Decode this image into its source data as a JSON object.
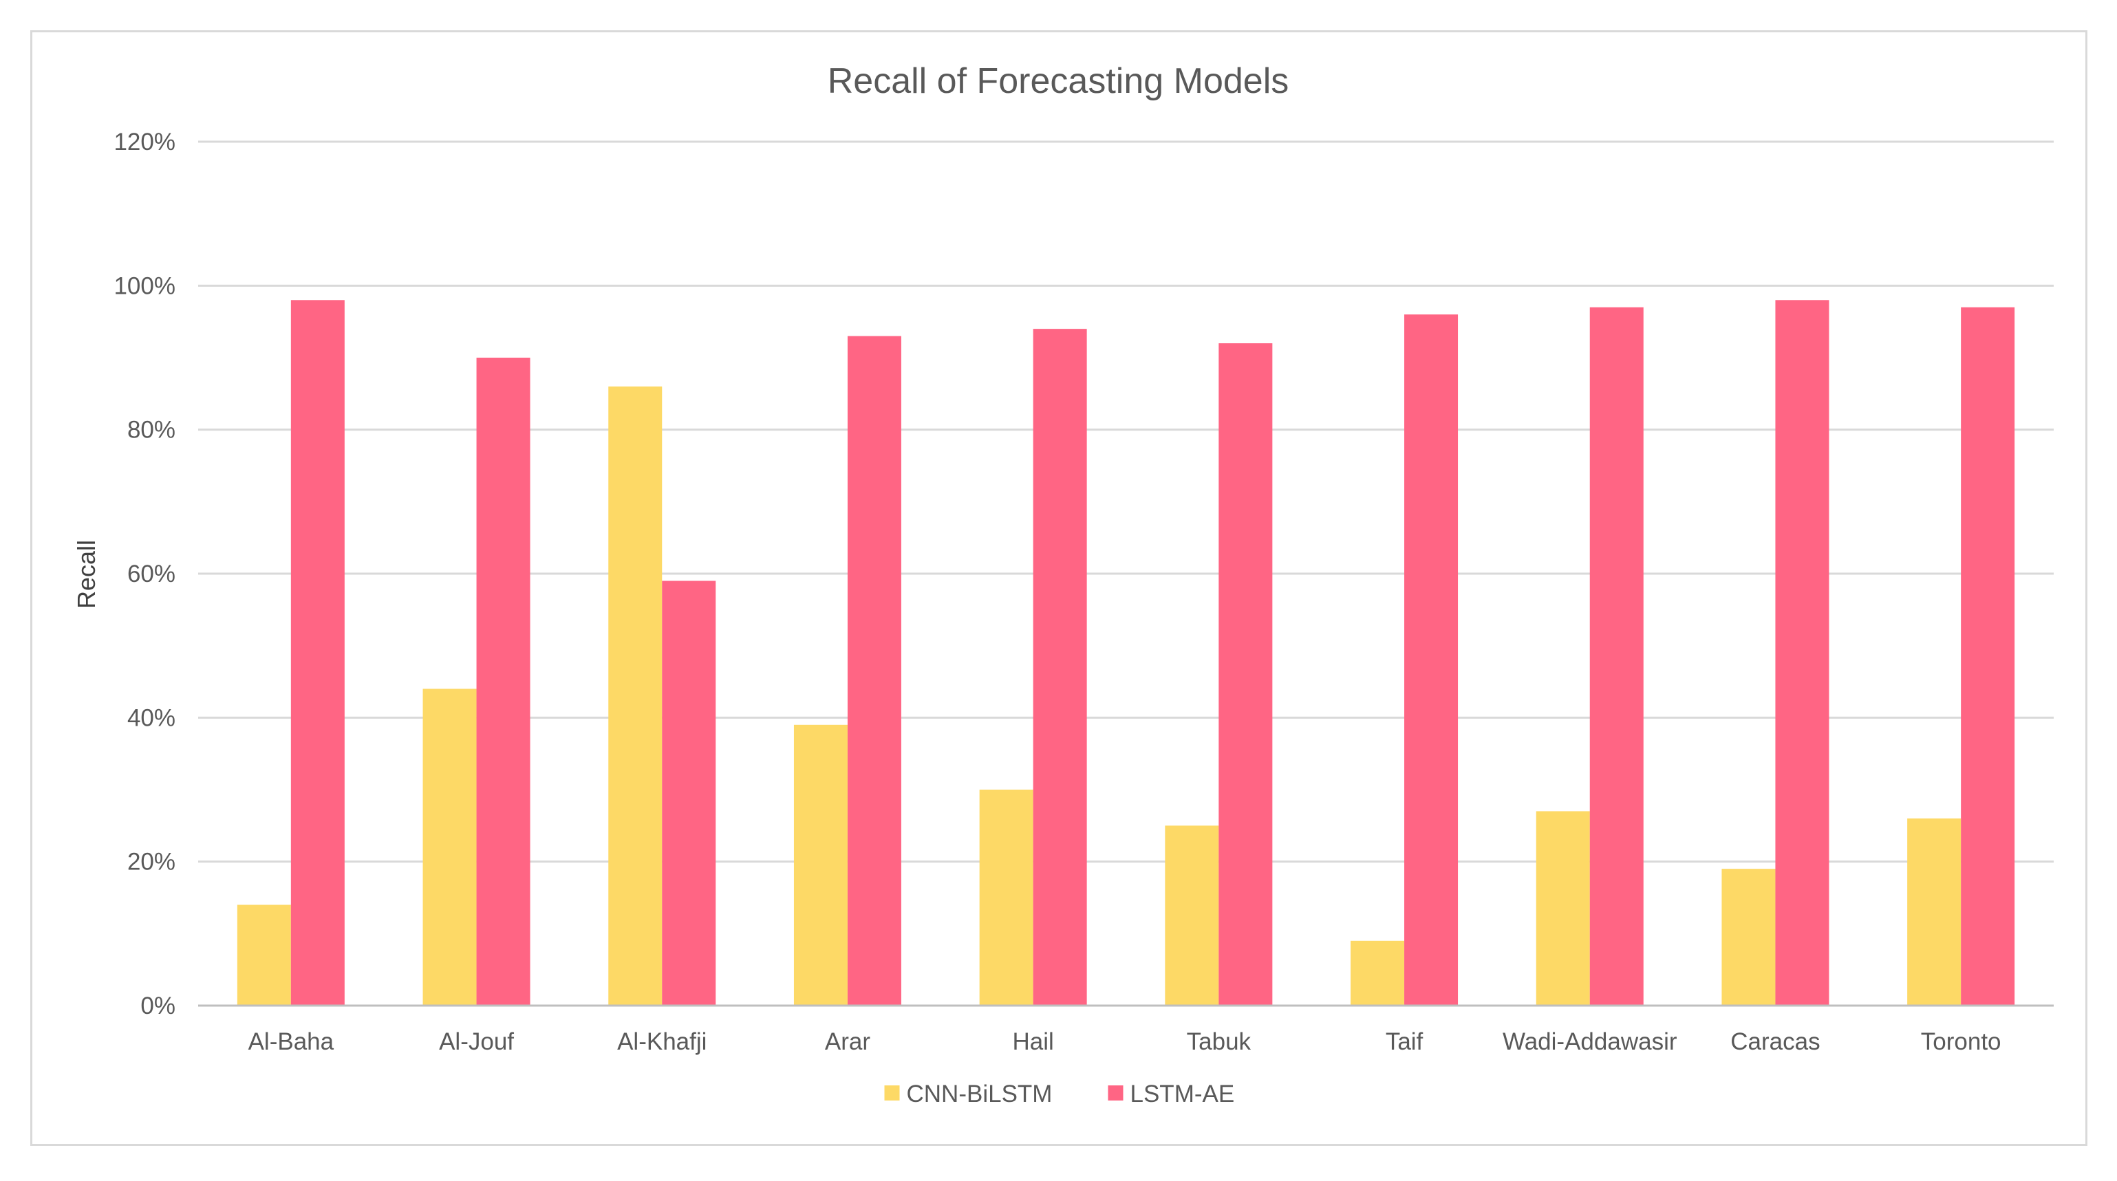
{
  "chart_data": {
    "type": "bar",
    "title": "Recall of Forecasting Models",
    "xlabel": "",
    "ylabel": "Recall",
    "ylim": [
      0,
      120
    ],
    "yticks": [
      "0%",
      "20%",
      "40%",
      "60%",
      "80%",
      "100%",
      "120%"
    ],
    "ytick_values": [
      0,
      20,
      40,
      60,
      80,
      100,
      120
    ],
    "grid": true,
    "legend_position": "bottom",
    "categories": [
      "Al-Baha",
      "Al-Jouf",
      "Al-Khafji",
      "Arar",
      "Hail",
      "Tabuk",
      "Taif",
      "Wadi-Addawasir",
      "Caracas",
      "Toronto"
    ],
    "series": [
      {
        "name": "CNN-BiLSTM",
        "color": "#FDD966",
        "values": [
          14,
          44,
          86,
          39,
          30,
          25,
          9,
          27,
          19,
          26
        ]
      },
      {
        "name": "LSTM-AE",
        "color": "#FF6584",
        "values": [
          98,
          90,
          59,
          93,
          94,
          92,
          96,
          97,
          98,
          97
        ]
      }
    ],
    "colors": {
      "gridline": "#d9d9d9",
      "axis": "#bfbfbf",
      "text": "#595959"
    }
  }
}
